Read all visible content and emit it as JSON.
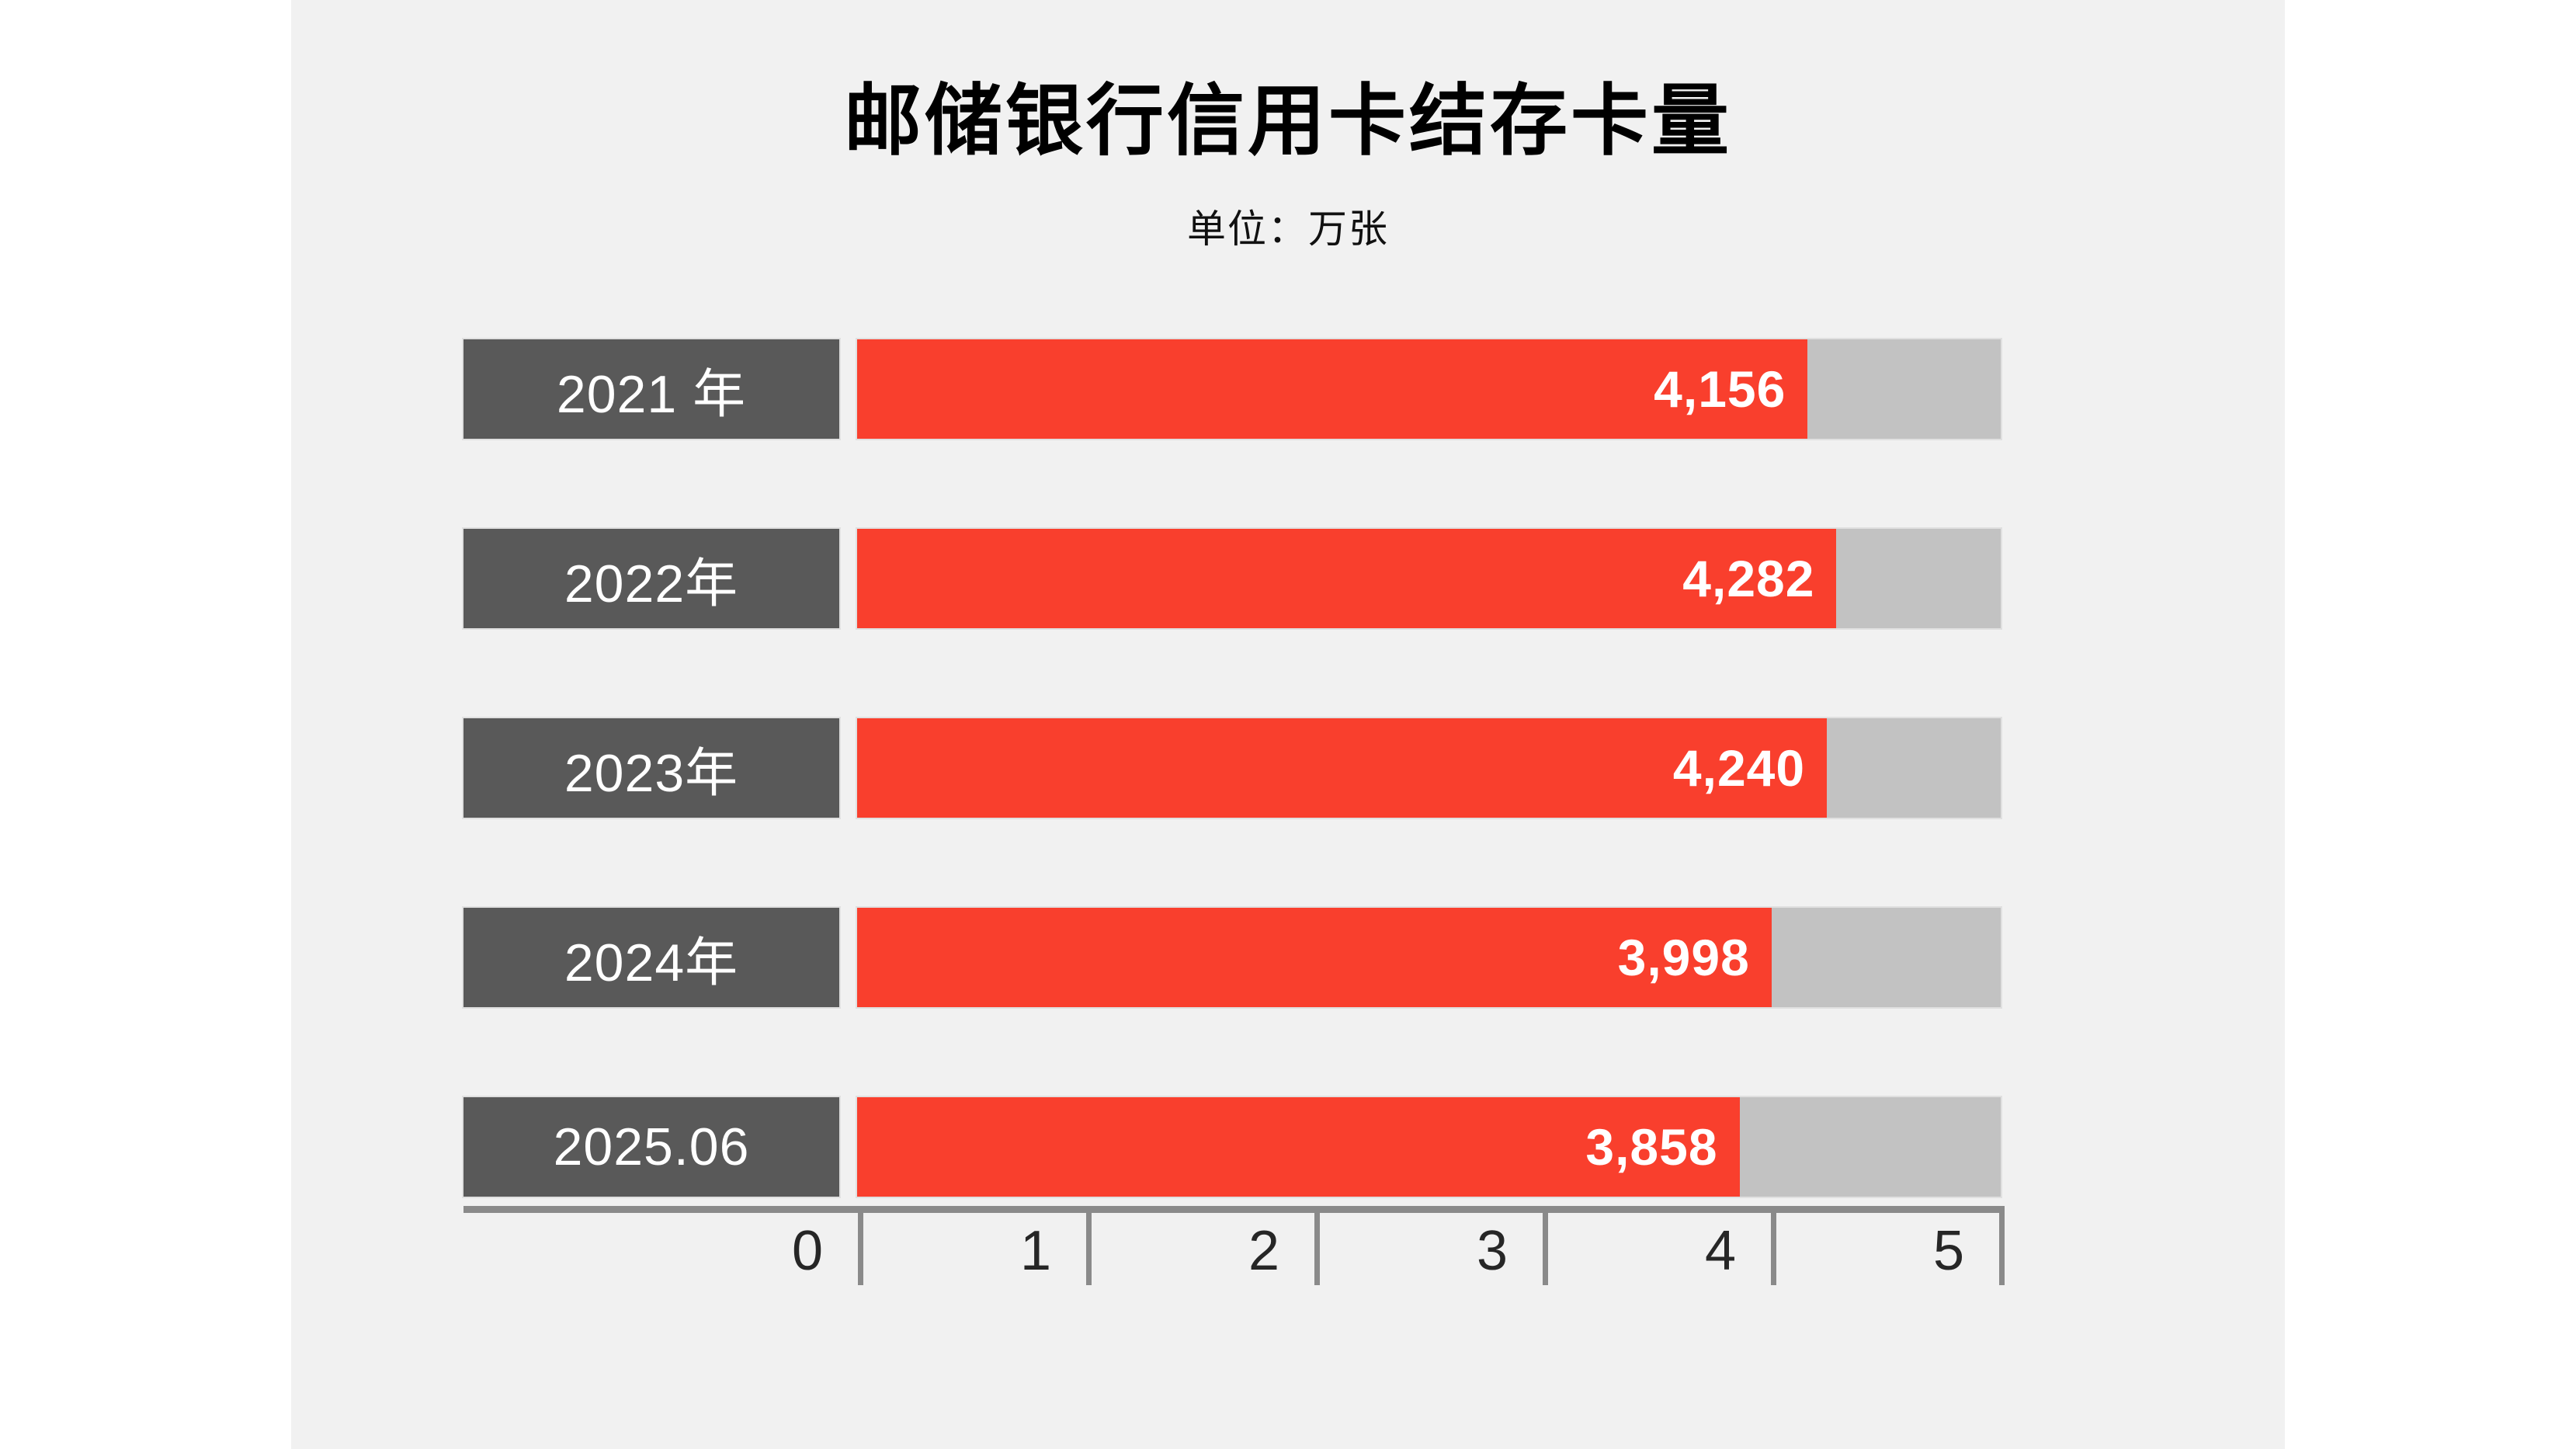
{
  "page": {
    "background": "#ffffff",
    "content_background": "#f1f1f1"
  },
  "header": {
    "title": "邮储银行信用卡结存卡量",
    "subtitle": "单位：万张"
  },
  "chart_data": {
    "type": "bar",
    "orientation": "horizontal",
    "title": "邮储银行信用卡结存卡量",
    "unit": "万张",
    "categories": [
      "2021 年",
      "2022年",
      "2023年",
      "2024年",
      "2025.06"
    ],
    "values": [
      4156,
      4282,
      4240,
      3998,
      3858
    ],
    "value_labels": [
      "4,156",
      "4,282",
      "4,240",
      "3,998",
      "3,858"
    ],
    "xlabel": "",
    "ylabel": "",
    "xlim": [
      0,
      5000
    ],
    "axis_tick_labels": [
      "0",
      "1",
      "2",
      "3",
      "4",
      "5"
    ],
    "axis_tick_values": [
      0,
      1000,
      2000,
      3000,
      4000,
      5000
    ],
    "grid": false,
    "legend": false,
    "colors": {
      "bar_fill": "#f93f2d",
      "bar_track": "#c2c2c2",
      "category_box": "#595959",
      "category_text": "#ffffff",
      "value_text": "#ffffff",
      "axis_line": "#8a8a8a",
      "tick_text": "#262626",
      "title_text": "#000000"
    }
  }
}
